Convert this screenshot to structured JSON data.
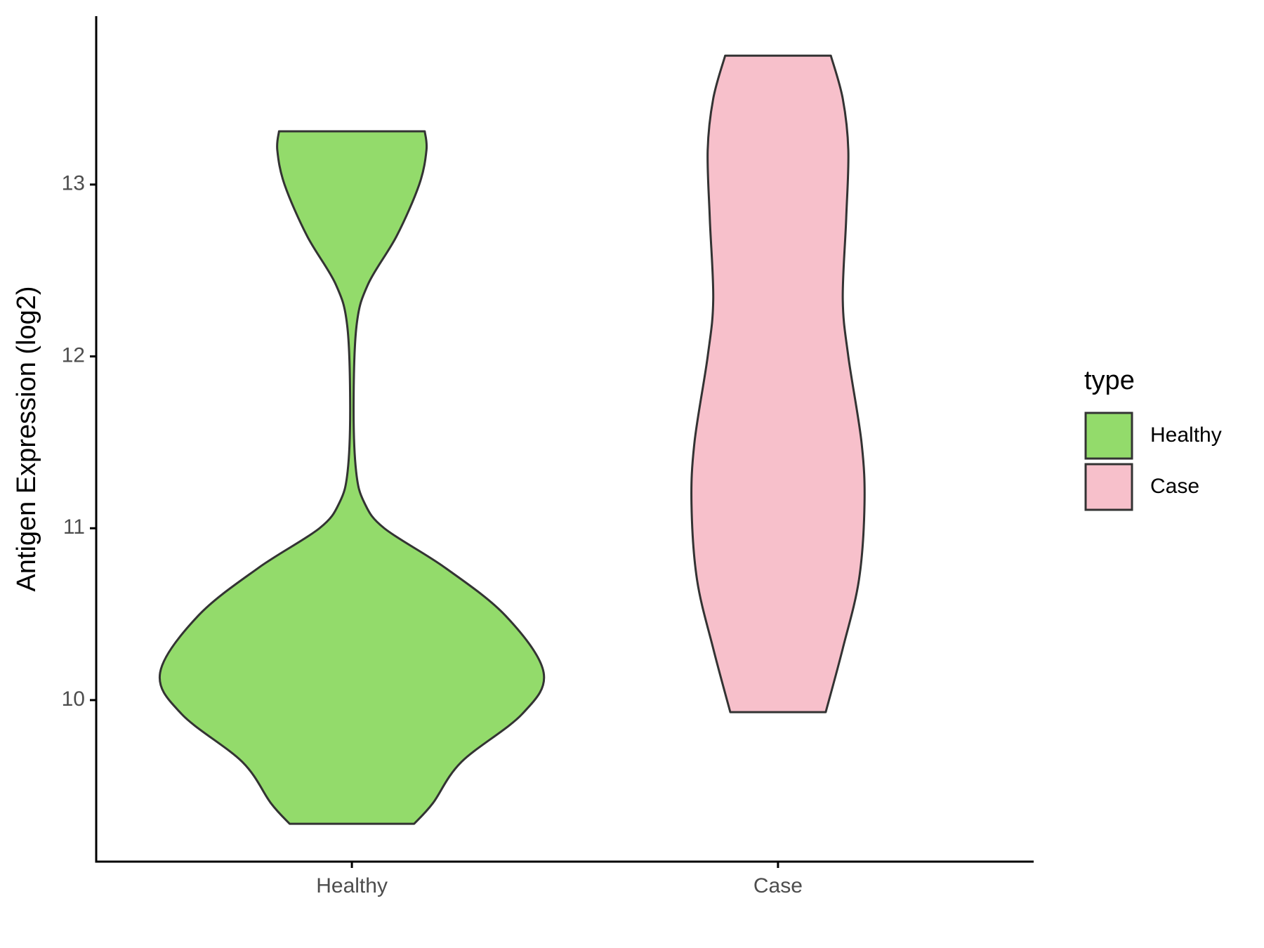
{
  "chart_data": {
    "type": "violin",
    "y_label": "Antigen Expression (log2)",
    "categories": [
      "Healthy",
      "Case"
    ],
    "series": [
      {
        "name": "Healthy",
        "color": "#93db6b",
        "y": [
          9.28,
          9.4,
          9.64,
          9.92,
          10.16,
          10.49,
          10.77,
          11.0,
          11.15,
          11.33,
          11.71,
          12.18,
          12.42,
          12.7,
          13.0,
          13.2,
          13.31
        ],
        "widths": [
          0.146,
          0.19,
          0.257,
          0.4,
          0.45,
          0.361,
          0.219,
          0.076,
          0.029,
          0.01,
          0.004,
          0.011,
          0.038,
          0.105,
          0.158,
          0.175,
          0.171
        ]
      },
      {
        "name": "Case",
        "color": "#f7c0cb",
        "y": [
          9.93,
          10.3,
          10.7,
          11.14,
          11.5,
          12.0,
          12.33,
          12.8,
          13.2,
          13.5,
          13.75
        ],
        "widths": [
          0.112,
          0.152,
          0.19,
          0.203,
          0.196,
          0.165,
          0.152,
          0.16,
          0.165,
          0.152,
          0.124
        ]
      }
    ],
    "ylim": [
      9.06,
      13.98
    ],
    "yticks": [
      10,
      11,
      12,
      13
    ],
    "legend_title": "type",
    "legend_position": "right"
  }
}
